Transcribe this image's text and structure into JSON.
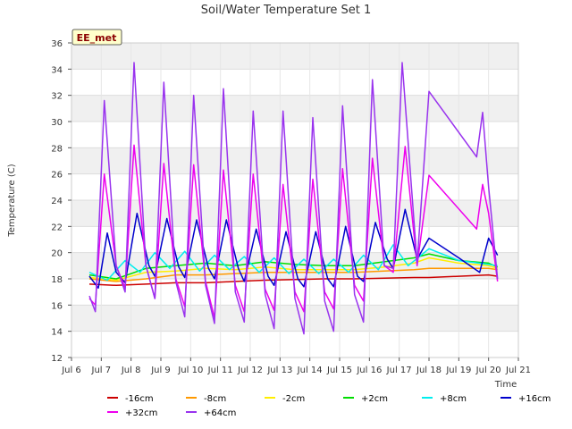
{
  "chart_data": {
    "type": "line",
    "title": "Soil/Water Temperature Set 1",
    "xlabel": "Time",
    "ylabel": "Temperature (C)",
    "site_badge": "EE_met",
    "xlim": [
      6,
      21
    ],
    "ylim": [
      12,
      36
    ],
    "x_ticks": [
      6,
      7,
      8,
      9,
      10,
      11,
      12,
      13,
      14,
      15,
      16,
      17,
      18,
      19,
      20,
      21
    ],
    "x_tick_labels": [
      "Jul 6",
      "Jul 7",
      "Jul 8",
      "Jul 9",
      "Jul 10",
      "Jul 11",
      "Jul 12",
      "Jul 13",
      "Jul 14",
      "Jul 15",
      "Jul 16",
      "Jul 17",
      "Jul 18",
      "Jul 19",
      "Jul 20",
      "Jul 21"
    ],
    "y_ticks": [
      12,
      14,
      16,
      18,
      20,
      22,
      24,
      26,
      28,
      30,
      32,
      34,
      36
    ],
    "grid": true,
    "background_bands": true,
    "legend_position": "bottom",
    "series": [
      {
        "name": "-16cm",
        "color": "#cc0000",
        "x": [
          6.6,
          7.5,
          8.5,
          9.5,
          10.5,
          11.5,
          12.5,
          13.5,
          14.5,
          15.5,
          16.5,
          17.5,
          18,
          19,
          20,
          20.3
        ],
        "y": [
          17.6,
          17.5,
          17.6,
          17.7,
          17.7,
          17.8,
          17.9,
          17.95,
          18.0,
          18.0,
          18.05,
          18.1,
          18.1,
          18.2,
          18.3,
          18.2
        ]
      },
      {
        "name": "-8cm",
        "color": "#ff9900",
        "x": [
          6.6,
          7.5,
          8.5,
          9.5,
          10.5,
          11.5,
          12.5,
          13.5,
          14.5,
          15.5,
          16.5,
          17.5,
          18,
          19,
          20,
          20.3
        ],
        "y": [
          18.0,
          17.8,
          18.0,
          18.3,
          18.3,
          18.4,
          18.5,
          18.5,
          18.5,
          18.5,
          18.6,
          18.7,
          18.8,
          18.8,
          18.8,
          18.7
        ]
      },
      {
        "name": "-2cm",
        "color": "#ffee00",
        "x": [
          6.6,
          7.5,
          8.5,
          9.5,
          10.5,
          11.5,
          12.5,
          13.5,
          14.5,
          15.5,
          16.5,
          17.5,
          18,
          19,
          20,
          20.3
        ],
        "y": [
          18.1,
          17.9,
          18.5,
          18.6,
          18.8,
          18.7,
          18.9,
          18.7,
          18.7,
          18.7,
          18.9,
          19.2,
          19.6,
          19.2,
          19.0,
          18.8
        ]
      },
      {
        "name": "+2cm",
        "color": "#00dd00",
        "x": [
          6.6,
          7.5,
          8.5,
          9.5,
          10.5,
          11.5,
          12.5,
          13.5,
          14.5,
          15.5,
          16.5,
          17.5,
          18,
          19,
          20,
          20.3
        ],
        "y": [
          18.3,
          18.0,
          18.8,
          19.0,
          19.2,
          19.0,
          19.3,
          19.1,
          19.0,
          19.0,
          19.3,
          19.6,
          19.9,
          19.4,
          19.2,
          18.9
        ]
      },
      {
        "name": "+8cm",
        "color": "#00eeee",
        "x": [
          6.6,
          7.2,
          7.8,
          8.3,
          8.8,
          9.3,
          9.8,
          10.3,
          10.8,
          11.3,
          11.8,
          12.3,
          12.8,
          13.3,
          13.8,
          14.3,
          14.8,
          15.3,
          15.8,
          16.3,
          16.8,
          17.3,
          18,
          19,
          20,
          20.3
        ],
        "y": [
          18.5,
          17.9,
          19.4,
          18.5,
          20.0,
          18.8,
          20.1,
          18.6,
          19.8,
          18.7,
          19.7,
          18.5,
          19.6,
          18.4,
          19.5,
          18.4,
          19.5,
          18.5,
          19.8,
          18.7,
          20.6,
          19.0,
          20.3,
          19.4,
          19.1,
          19.0
        ]
      },
      {
        "name": "+16cm",
        "color": "#0000cc",
        "x": [
          6.6,
          6.9,
          7.2,
          7.5,
          7.8,
          8.2,
          8.6,
          8.8,
          9.2,
          9.6,
          9.8,
          10.2,
          10.6,
          10.8,
          11.2,
          11.6,
          11.8,
          12.2,
          12.6,
          12.8,
          13.2,
          13.6,
          13.8,
          14.2,
          14.6,
          14.8,
          15.2,
          15.6,
          15.8,
          16.2,
          16.6,
          16.8,
          17.2,
          17.6,
          18.0,
          19.0,
          19.7,
          20.0,
          20.3
        ],
        "y": [
          18.2,
          17.3,
          21.5,
          18.5,
          17.7,
          23.0,
          19.0,
          18.2,
          22.6,
          18.9,
          18.1,
          22.5,
          18.8,
          18.0,
          22.5,
          18.8,
          17.8,
          21.8,
          18.2,
          17.5,
          21.6,
          18.0,
          17.4,
          21.6,
          18.0,
          17.4,
          22.0,
          18.2,
          17.8,
          22.3,
          19.5,
          18.8,
          23.3,
          19.5,
          21.1,
          19.6,
          18.5,
          21.1,
          19.8
        ]
      },
      {
        "name": "+32cm",
        "color": "#ee00ee",
        "x": [
          6.6,
          6.8,
          7.1,
          7.5,
          7.8,
          8.1,
          8.5,
          8.8,
          9.1,
          9.5,
          9.8,
          10.1,
          10.5,
          10.8,
          11.1,
          11.5,
          11.8,
          12.1,
          12.5,
          12.8,
          13.1,
          13.5,
          13.8,
          14.1,
          14.5,
          14.8,
          15.1,
          15.5,
          15.8,
          16.1,
          16.5,
          16.8,
          17.2,
          17.6,
          18.0,
          19.6,
          19.8,
          20.0,
          20.3
        ],
        "y": [
          16.5,
          16.0,
          26.0,
          19.0,
          17.3,
          28.2,
          19.0,
          16.5,
          26.8,
          18.0,
          15.9,
          26.7,
          17.8,
          15.0,
          26.3,
          17.5,
          15.5,
          26.0,
          17.2,
          15.6,
          25.2,
          17.0,
          15.5,
          25.6,
          17.0,
          15.7,
          26.4,
          17.5,
          16.3,
          27.2,
          19.0,
          18.5,
          28.1,
          19.0,
          25.9,
          21.8,
          25.2,
          23.0,
          17.8
        ]
      },
      {
        "name": "+64cm",
        "color": "#9933ee",
        "x": [
          6.6,
          6.8,
          7.1,
          7.5,
          7.8,
          8.1,
          8.5,
          8.8,
          9.1,
          9.5,
          9.8,
          10.1,
          10.5,
          10.8,
          11.1,
          11.5,
          11.8,
          12.1,
          12.5,
          12.8,
          13.1,
          13.5,
          13.8,
          14.1,
          14.5,
          14.8,
          15.1,
          15.5,
          15.8,
          16.1,
          16.5,
          16.8,
          17.1,
          17.6,
          18.0,
          19.6,
          19.8,
          20.0,
          20.3
        ],
        "y": [
          16.7,
          15.5,
          31.6,
          19.0,
          17.0,
          34.5,
          19.0,
          16.5,
          33.0,
          17.8,
          15.1,
          32.0,
          17.5,
          14.6,
          32.5,
          17.0,
          14.7,
          30.8,
          16.8,
          14.2,
          30.8,
          16.5,
          13.8,
          30.3,
          16.3,
          14.0,
          31.2,
          16.8,
          14.7,
          33.2,
          19.0,
          18.8,
          34.5,
          19.2,
          32.3,
          27.3,
          30.7,
          25.0,
          18.0
        ]
      }
    ]
  }
}
